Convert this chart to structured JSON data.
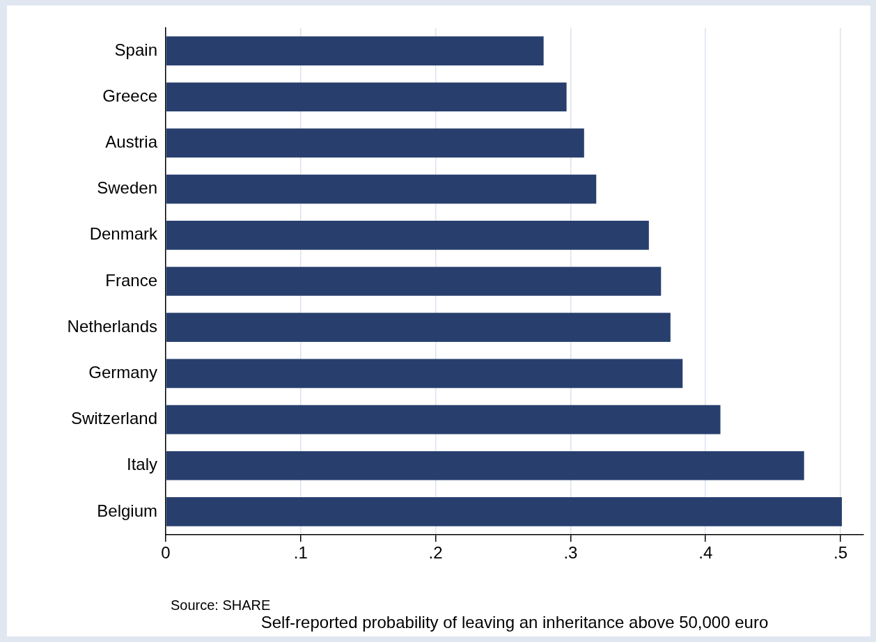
{
  "chart_data": {
    "type": "bar",
    "orientation": "horizontal",
    "xlabel": "Self-reported probability of leaving an inheritance above 50,000 euro",
    "categories": [
      "Spain",
      "Greece",
      "Austria",
      "Sweden",
      "Denmark",
      "France",
      "Netherlands",
      "Germany",
      "Switzerland",
      "Italy",
      "Belgium"
    ],
    "values": [
      0.28,
      0.297,
      0.31,
      0.319,
      0.358,
      0.367,
      0.374,
      0.383,
      0.411,
      0.473,
      0.501
    ],
    "color": "#283f6e",
    "xlim": [
      0,
      0.517
    ],
    "xticks": [
      0,
      {
        "value": 0.1,
        "label": ".1"
      },
      {
        "value": 0.2,
        "label": ".2"
      },
      {
        "value": 0.3,
        "label": ".3"
      },
      {
        "value": 0.4,
        "label": ".4"
      },
      {
        "value": 0.5,
        "label": ".5"
      }
    ],
    "grid": "x",
    "legend": false,
    "annotations": [
      "Source: SHARE"
    ]
  }
}
